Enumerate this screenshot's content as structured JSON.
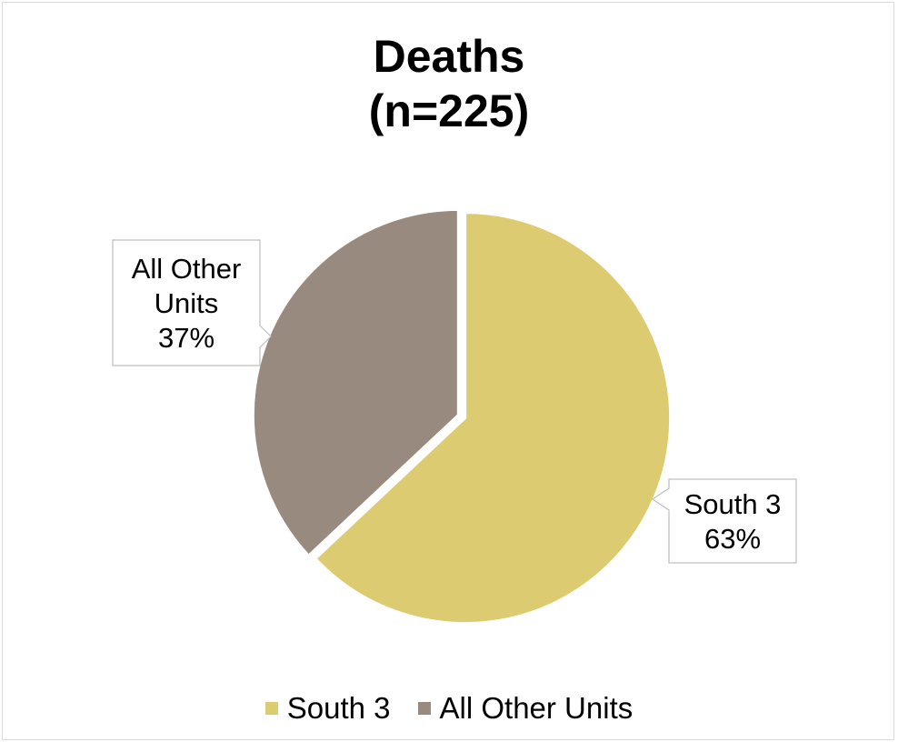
{
  "chart_data": {
    "type": "pie",
    "title_lines": [
      "Deaths",
      "(n=225)"
    ],
    "slices": [
      {
        "label": "South 3",
        "value": 63,
        "display": "63%",
        "color": "#dccb71"
      },
      {
        "label": "All Other Units",
        "value": 37,
        "display": "37%",
        "color": "#998a7f"
      }
    ],
    "data_labels": [
      {
        "lines": [
          "South 3",
          "63%"
        ]
      },
      {
        "lines": [
          "All Other",
          "Units",
          "37%"
        ]
      }
    ],
    "legend": {
      "position": "bottom",
      "items": [
        {
          "label": "South 3",
          "color": "#dccb71"
        },
        {
          "label": "All Other Units",
          "color": "#998a7f"
        }
      ]
    }
  }
}
